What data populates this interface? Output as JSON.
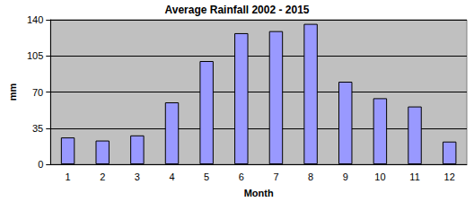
{
  "chart_data": {
    "type": "bar",
    "title": "Average Rainfall 2002 - 2015",
    "x_label": "Month",
    "y_label": "mm",
    "categories": [
      "1",
      "2",
      "3",
      "4",
      "5",
      "6",
      "7",
      "8",
      "9",
      "10",
      "11",
      "12"
    ],
    "values": [
      26,
      23,
      28,
      60,
      100,
      127,
      129,
      136,
      80,
      64,
      56,
      22
    ],
    "color": "#9999ff",
    "ylim": [
      0,
      140
    ],
    "yticks": [
      0,
      35,
      70,
      105,
      140
    ],
    "grid": true
  }
}
